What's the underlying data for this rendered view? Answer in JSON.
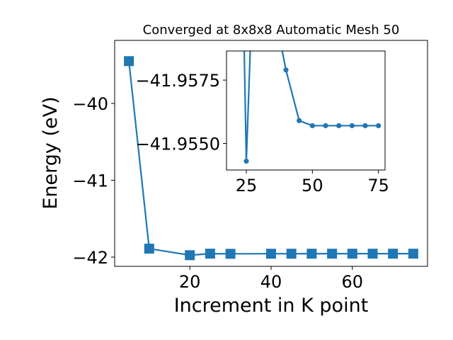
{
  "chart_data": [
    {
      "role": "main",
      "type": "line",
      "title": "Converged at 8x8x8 Automatic Mesh 50",
      "xlabel": "Increment in K point",
      "ylabel": "Energy (eV)",
      "xlim": [
        1.5,
        78.5
      ],
      "ylim": [
        -42.12,
        -39.18
      ],
      "xticks": [
        20,
        40,
        60
      ],
      "yticks": [
        -42,
        -41,
        -40
      ],
      "ytick_labels": [
        "−42",
        "−41",
        "−40"
      ],
      "marker": "square",
      "color": "#1f77b4",
      "series": [
        {
          "x": [
            5,
            10,
            20,
            25,
            30,
            40,
            45,
            50,
            55,
            60,
            65,
            70,
            75
          ],
          "y": [
            -39.45,
            -41.89,
            -41.975,
            -41.955,
            -41.957,
            -41.956,
            -41.9557,
            -41.9554,
            -41.9554,
            -41.9554,
            -41.9554,
            -41.9554,
            -41.9554
          ]
        }
      ]
    },
    {
      "role": "inset",
      "type": "line",
      "xlim": [
        17.5,
        77.5
      ],
      "ylim": [
        -41.95395,
        -41.95865
      ],
      "xticks": [
        25,
        50,
        75
      ],
      "yticks": [
        -41.9575,
        -41.955
      ],
      "ytick_labels": [
        "−41.9575",
        "−41.9550"
      ],
      "marker": "circle",
      "color": "#1f77b4",
      "series": [
        {
          "x": [
            24.2,
            25,
            26.5,
            38.5,
            40,
            45,
            50,
            55,
            60,
            65,
            70,
            75
          ],
          "y": [
            -41.9587,
            -41.9543,
            -41.9587,
            -41.9587,
            -41.9579,
            -41.9559,
            -41.9557,
            -41.9557,
            -41.9557,
            -41.9557,
            -41.9557,
            -41.9557
          ],
          "marker_flags": [
            0,
            1,
            0,
            0,
            1,
            1,
            1,
            1,
            1,
            1,
            1,
            1
          ]
        }
      ]
    }
  ]
}
